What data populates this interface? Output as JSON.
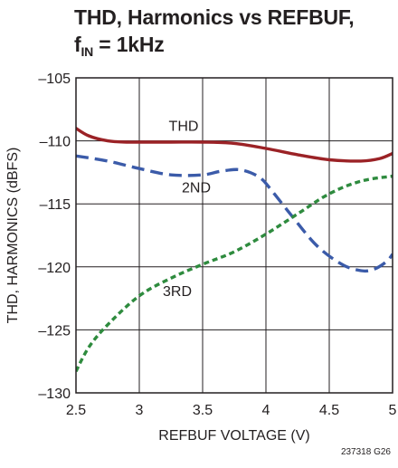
{
  "title": {
    "line1": "THD, Harmonics vs REFBUF,",
    "line2_main": "f",
    "line2_sub": "IN",
    "line2_rest": " = 1kHz"
  },
  "figure_id": "237318 G26",
  "chart_data": {
    "type": "line",
    "xlabel": "REFBUF VOLTAGE (V)",
    "ylabel": "THD, HARMONICS (dBFS)",
    "xlim": [
      2.5,
      5
    ],
    "ylim": [
      -130,
      -105
    ],
    "xticks": [
      2.5,
      3,
      3.5,
      4,
      4.5,
      5
    ],
    "xtick_labels": [
      "2.5",
      "3",
      "3.5",
      "4",
      "4.5",
      "5"
    ],
    "yticks": [
      -130,
      -125,
      -120,
      -115,
      -110,
      -105
    ],
    "ytick_labels": [
      "–130",
      "–125",
      "–120",
      "–115",
      "–110",
      "–105"
    ],
    "grid": true,
    "series": [
      {
        "name": "THD",
        "color": "#9b2226",
        "style": "solid",
        "x": [
          2.5,
          2.6,
          2.75,
          2.9,
          3.0,
          3.25,
          3.5,
          3.75,
          4.0,
          4.25,
          4.5,
          4.75,
          4.9,
          5.0
        ],
        "y": [
          -109.0,
          -109.6,
          -110.0,
          -110.1,
          -110.1,
          -110.1,
          -110.1,
          -110.2,
          -110.6,
          -111.1,
          -111.5,
          -111.6,
          -111.4,
          -111.0
        ]
      },
      {
        "name": "2ND",
        "color": "#3b5ba9",
        "style": "dashed",
        "x": [
          2.5,
          2.75,
          3.0,
          3.25,
          3.5,
          3.65,
          3.8,
          3.95,
          4.05,
          4.2,
          4.4,
          4.6,
          4.75,
          4.85,
          4.95,
          5.0
        ],
        "y": [
          -111.2,
          -111.6,
          -112.2,
          -112.7,
          -112.7,
          -112.4,
          -112.3,
          -112.9,
          -114.0,
          -115.9,
          -118.3,
          -119.8,
          -120.3,
          -120.2,
          -119.6,
          -119.0
        ]
      },
      {
        "name": "3RD",
        "color": "#2e8b3e",
        "style": "dotted",
        "x": [
          2.5,
          2.6,
          2.75,
          3.0,
          3.25,
          3.5,
          3.75,
          4.0,
          4.25,
          4.5,
          4.75,
          5.0
        ],
        "y": [
          -128.3,
          -126.4,
          -124.6,
          -122.3,
          -120.9,
          -119.8,
          -118.8,
          -117.4,
          -115.8,
          -114.2,
          -113.2,
          -112.8
        ]
      }
    ],
    "annotations": [
      {
        "text": "THD",
        "x": 3.35,
        "y": -109.2
      },
      {
        "text": "2ND",
        "x": 3.45,
        "y": -114.1
      },
      {
        "text": "3RD",
        "x": 3.3,
        "y": -122.3
      }
    ]
  }
}
